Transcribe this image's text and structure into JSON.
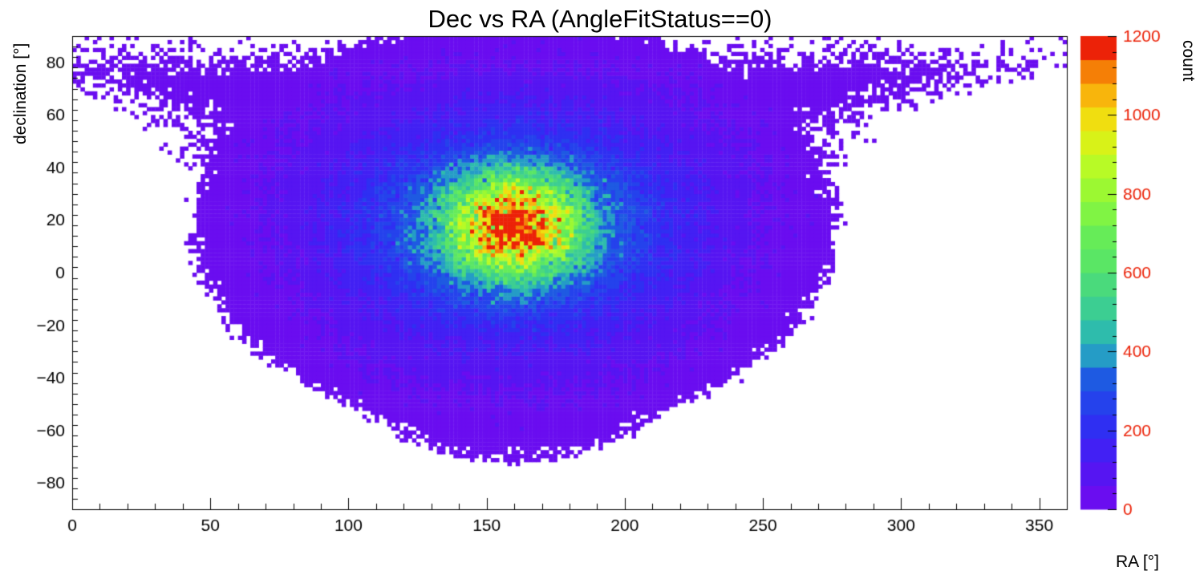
{
  "page": {
    "background": "#ffffff"
  },
  "chart_data": {
    "type": "heatmap",
    "title": "Dec vs RA (AngleFitStatus==0)",
    "xlabel": "RA [°]",
    "ylabel": "declination [°]",
    "zlabel": "count",
    "xlim": [
      0,
      360
    ],
    "ylim": [
      -90,
      90
    ],
    "x_ticks": [
      0,
      50,
      100,
      150,
      200,
      250,
      300,
      350
    ],
    "x_minor_step": 10,
    "y_ticks": [
      -80,
      -60,
      -40,
      -20,
      0,
      20,
      40,
      60,
      80
    ],
    "y_minor_step": 4,
    "grid": false,
    "legend_position": "none",
    "colorbar": {
      "label": "count",
      "min": 0,
      "max": 1200,
      "ticks": [
        0,
        200,
        400,
        600,
        800,
        1000,
        1200
      ],
      "minor_step": 40
    },
    "palette": [
      "#6A0DF0",
      "#5615F2",
      "#4220F4",
      "#2F2FF2",
      "#2542EC",
      "#1E5AE2",
      "#259CC6",
      "#2EBCAC",
      "#3CCE92",
      "#4ADA7C",
      "#5AE665",
      "#66EC58",
      "#80F444",
      "#9CF832",
      "#B8FA26",
      "#D8F218",
      "#F0DE10",
      "#F8B50C",
      "#F57F06",
      "#EC2208"
    ],
    "bin_size_deg": 1.5,
    "distribution": {
      "description": "2D sky histogram: quasi-Gaussian event excess centered near RA 160, Dec +18, sitting on a broad low-count halo whose RA extent widens with declination (full RA coverage above dec ~75, cutoff below dec ~ -73)",
      "peak": {
        "ra": 160,
        "dec": 18,
        "count": 1200
      },
      "core": {
        "amplitude": 820,
        "sigma_ra": 15,
        "sigma_dec": 12
      },
      "halo": {
        "amplitude": 420,
        "sigma_ra": 40,
        "sigma_dec": 27
      },
      "floor": {
        "min": 12,
        "max": 52
      },
      "noise_fraction": 0.15,
      "edge_fade": {
        "start": 0.85,
        "end": 1.25
      },
      "top_speckle": {
        "dec_min": 74,
        "base_prob": 0.07
      },
      "envelope_halfwidth_by_dec": [
        [
          -73,
          0
        ],
        [
          -70,
          22
        ],
        [
          -60,
          40
        ],
        [
          -40,
          58
        ],
        [
          -20,
          70
        ],
        [
          0,
          82
        ],
        [
          20,
          90
        ],
        [
          40,
          98
        ],
        [
          60,
          113
        ],
        [
          70,
          138
        ],
        [
          75,
          162
        ],
        [
          80,
          180
        ],
        [
          90,
          180
        ]
      ],
      "dec_range": [
        -73,
        90
      ]
    }
  }
}
